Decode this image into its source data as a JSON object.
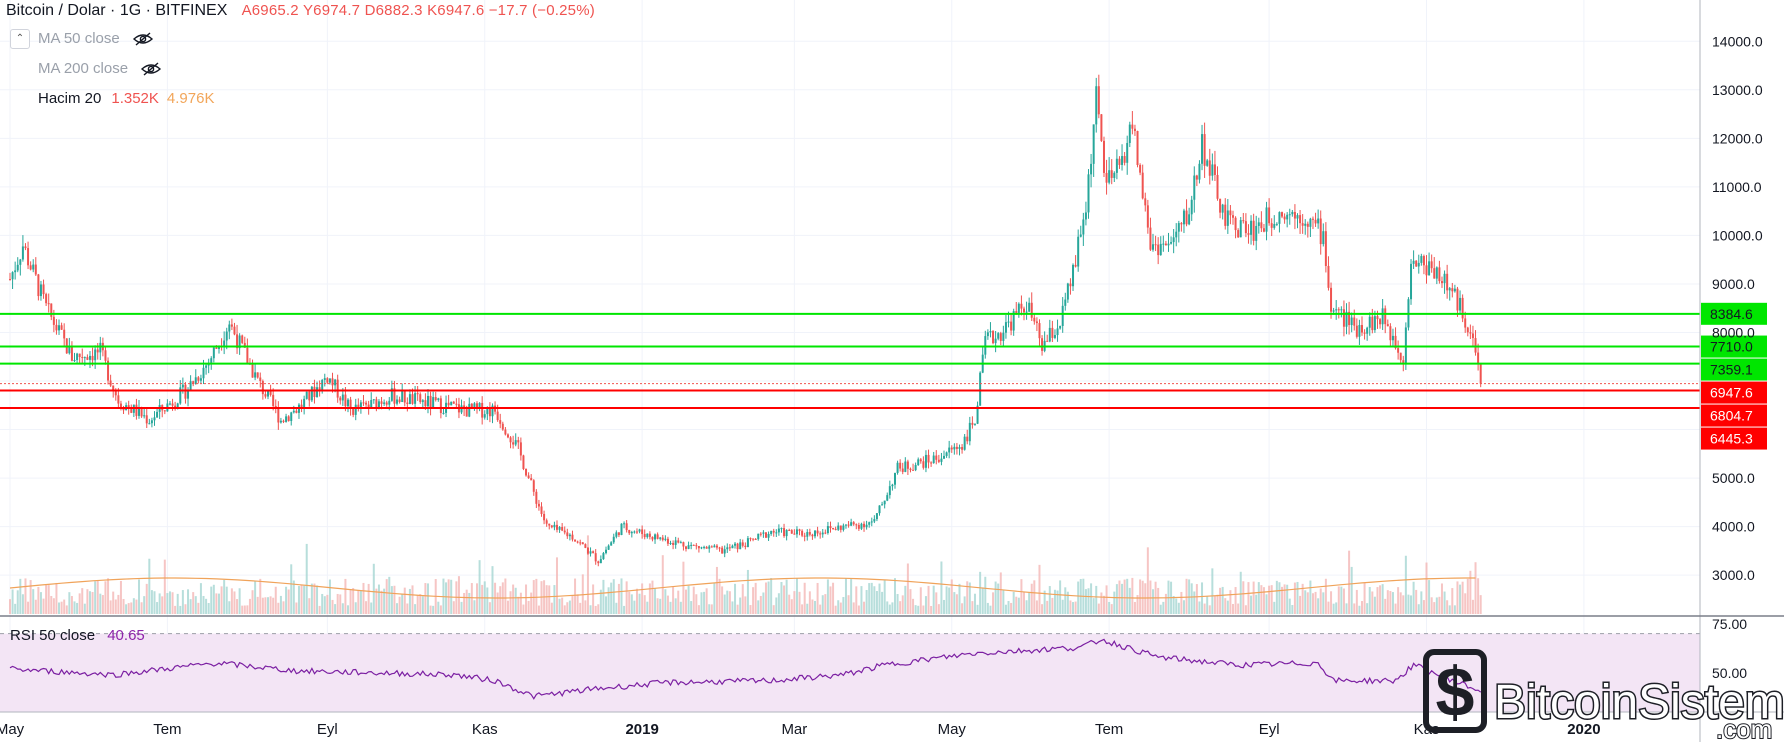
{
  "header": {
    "symbol": "Bitcoin / Dolar · 1G · BITFINEX",
    "ohlc_text": "A6965.2 Y6974.7 D6882.3 K6947.6 −17.7 (−0.25%)"
  },
  "indicators": [
    {
      "label": "MA 50 close",
      "hidden": true
    },
    {
      "label": "MA 200 close",
      "hidden": true
    },
    {
      "label": "Hacim 20",
      "value1": "1.352K",
      "value2": "4.976K"
    }
  ],
  "rsi": {
    "label": "RSI 50 close",
    "value": "40.65"
  },
  "colors": {
    "up": "#26a69a",
    "down": "#ef5350",
    "support": "#00e600",
    "resistance": "#ff0000",
    "rsi_line": "#7b1fa2",
    "rsi_band": "#f3e5f5",
    "volume_ma": "#f0a35a"
  },
  "watermark": {
    "brand": "BitcoinSistemi",
    "domain": ".com"
  },
  "chart_data": {
    "type": "candlestick",
    "title": "Bitcoin / Dolar · 1G · BITFINEX",
    "price_axis": {
      "ticks": [
        3000,
        4000,
        5000,
        6000,
        7000,
        8000,
        9000,
        10000,
        11000,
        12000,
        13000,
        14000
      ],
      "tick_labels": [
        "3000.0",
        "4000.0",
        "5000.0",
        "",
        "",
        "8000.0",
        "9000.0",
        "10000.0",
        "11000.0",
        "12000.0",
        "13000.0",
        "14000.0"
      ],
      "range": [
        2200,
        14850
      ]
    },
    "time_axis": {
      "labels": [
        "May",
        "Tem",
        "Eyl",
        "Kas",
        "2019",
        "Mar",
        "May",
        "Tem",
        "Eyl",
        "Kas",
        "2020"
      ],
      "dates": [
        "2018-05-01",
        "2018-07-01",
        "2018-09-01",
        "2018-11-01",
        "2019-01-01",
        "2019-03-01",
        "2019-05-01",
        "2019-07-01",
        "2019-09-01",
        "2019-11-01",
        "2020-01-01"
      ],
      "range": [
        "2018-05-01",
        "2020-02-15"
      ]
    },
    "horizontal_levels": [
      {
        "value": 8384.6,
        "label": "8384.6",
        "color": "green"
      },
      {
        "value": 7710.0,
        "label": "7710.0",
        "color": "green"
      },
      {
        "value": 7359.1,
        "label": "7359.1",
        "color": "green"
      },
      {
        "value": 6947.6,
        "label": "6947.6",
        "color": "red",
        "current_price": true
      },
      {
        "value": 6804.7,
        "label": "6804.7",
        "color": "red"
      },
      {
        "value": 6445.3,
        "label": "6445.3",
        "color": "red"
      }
    ],
    "price_series": {
      "dates": [
        "2018-05-01",
        "2018-05-06",
        "2018-05-15",
        "2018-05-25",
        "2018-06-05",
        "2018-06-12",
        "2018-06-24",
        "2018-07-08",
        "2018-07-17",
        "2018-07-25",
        "2018-08-05",
        "2018-08-14",
        "2018-08-22",
        "2018-09-01",
        "2018-09-10",
        "2018-09-18",
        "2018-09-25",
        "2018-10-05",
        "2018-10-15",
        "2018-10-25",
        "2018-11-05",
        "2018-11-14",
        "2018-11-20",
        "2018-11-25",
        "2018-12-05",
        "2018-12-15",
        "2018-12-24",
        "2019-01-05",
        "2019-01-20",
        "2019-02-01",
        "2019-02-10",
        "2019-02-20",
        "2019-03-05",
        "2019-03-20",
        "2019-04-01",
        "2019-04-10",
        "2019-04-25",
        "2019-05-05",
        "2019-05-10",
        "2019-05-14",
        "2019-05-20",
        "2019-05-30",
        "2019-06-05",
        "2019-06-12",
        "2019-06-17",
        "2019-06-22",
        "2019-06-26",
        "2019-06-30",
        "2019-07-05",
        "2019-07-10",
        "2019-07-17",
        "2019-07-25",
        "2019-08-01",
        "2019-08-06",
        "2019-08-15",
        "2019-08-25",
        "2019-09-05",
        "2019-09-15",
        "2019-09-22",
        "2019-09-25",
        "2019-10-05",
        "2019-10-15",
        "2019-10-23",
        "2019-10-26",
        "2019-11-05",
        "2019-11-12",
        "2019-11-18",
        "2019-11-22"
      ],
      "close": [
        9100,
        9800,
        8500,
        7500,
        7600,
        6600,
        6200,
        6800,
        7400,
        8200,
        7000,
        6200,
        6500,
        7100,
        6400,
        6500,
        6700,
        6600,
        6500,
        6400,
        6400,
        5600,
        4700,
        4000,
        3800,
        3300,
        4000,
        3800,
        3600,
        3500,
        3650,
        3900,
        3850,
        4000,
        4100,
        5200,
        5400,
        5700,
        6200,
        7800,
        8000,
        8600,
        7700,
        8200,
        9200,
        10600,
        12800,
        11000,
        11400,
        12300,
        9800,
        9800,
        10500,
        11900,
        10300,
        10100,
        10500,
        10400,
        10000,
        8500,
        8100,
        8300,
        7500,
        9500,
        9300,
        8700,
        8100,
        6947
      ]
    },
    "rsi_axis": {
      "ticks": [
        50,
        75
      ],
      "tick_labels": [
        "50.00",
        "75.00"
      ],
      "range": [
        30,
        78
      ],
      "band": [
        30,
        70
      ]
    },
    "rsi_series": {
      "dates": [
        "2018-05-01",
        "2018-06-10",
        "2018-07-20",
        "2018-08-20",
        "2018-09-20",
        "2018-10-20",
        "2018-11-05",
        "2018-11-20",
        "2018-12-15",
        "2019-01-10",
        "2019-02-20",
        "2019-03-20",
        "2019-04-05",
        "2019-05-10",
        "2019-06-20",
        "2019-06-28",
        "2019-07-20",
        "2019-08-20",
        "2019-09-20",
        "2019-09-26",
        "2019-10-20",
        "2019-10-27",
        "2019-11-22"
      ],
      "values": [
        52,
        49,
        55,
        51,
        50,
        49,
        46,
        38,
        42,
        45,
        46,
        49,
        54,
        60,
        63,
        67,
        58,
        54,
        55,
        46,
        46,
        54,
        40.65
      ]
    }
  }
}
